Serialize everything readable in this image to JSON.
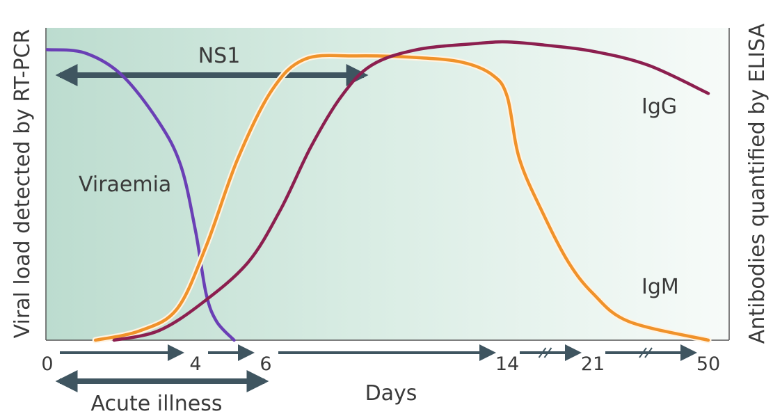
{
  "chart_data": {
    "type": "line",
    "title": "",
    "xlabel": "Days",
    "ylabel_left": "Viral load detected by RT-PCR",
    "ylabel_right": "Antibodies quantified by ELISA",
    "x_ticks": [
      "0",
      "4",
      "6",
      "14",
      "21",
      "50"
    ],
    "axis_breaks_between": [
      [
        "14",
        "21"
      ],
      [
        "21",
        "50"
      ]
    ],
    "ylim": [
      0,
      100
    ],
    "grid": false,
    "series": [
      {
        "name": "Viraemia",
        "color": "#6a3fb5",
        "points": [
          [
            0,
            93
          ],
          [
            1,
            92
          ],
          [
            2,
            85
          ],
          [
            3,
            70
          ],
          [
            3.6,
            56
          ],
          [
            4,
            35
          ],
          [
            4.3,
            15
          ],
          [
            4.6,
            6
          ],
          [
            5.1,
            0
          ]
        ]
      },
      {
        "name": "IgM",
        "color": "#f0922a",
        "points": [
          [
            1.3,
            0
          ],
          [
            2.5,
            3
          ],
          [
            3.5,
            10
          ],
          [
            4.3,
            30
          ],
          [
            5.2,
            58
          ],
          [
            6.2,
            80
          ],
          [
            7.3,
            90
          ],
          [
            9,
            91
          ],
          [
            11,
            90.5
          ],
          [
            12.5,
            89
          ],
          [
            13.5,
            85
          ],
          [
            14,
            78
          ],
          [
            15,
            58
          ],
          [
            17,
            40
          ],
          [
            19,
            25
          ],
          [
            21,
            15
          ],
          [
            30,
            6
          ],
          [
            50,
            0
          ]
        ]
      },
      {
        "name": "IgG",
        "color": "#8c1f4f",
        "points": [
          [
            1.8,
            0
          ],
          [
            3,
            3
          ],
          [
            4.2,
            12
          ],
          [
            5.5,
            25
          ],
          [
            6.5,
            42
          ],
          [
            7.5,
            62
          ],
          [
            8.5,
            78
          ],
          [
            9.5,
            88
          ],
          [
            11,
            93
          ],
          [
            13,
            95
          ],
          [
            14,
            95.5
          ],
          [
            17,
            94.5
          ],
          [
            21,
            92.5
          ],
          [
            35,
            88
          ],
          [
            50,
            79
          ]
        ]
      }
    ],
    "annotations": [
      {
        "label": "NS1",
        "type": "double-arrow",
        "from": 0,
        "to": 9.3
      },
      {
        "label": "Acute illness",
        "type": "double-arrow",
        "from": 0,
        "to": 6
      }
    ]
  }
}
